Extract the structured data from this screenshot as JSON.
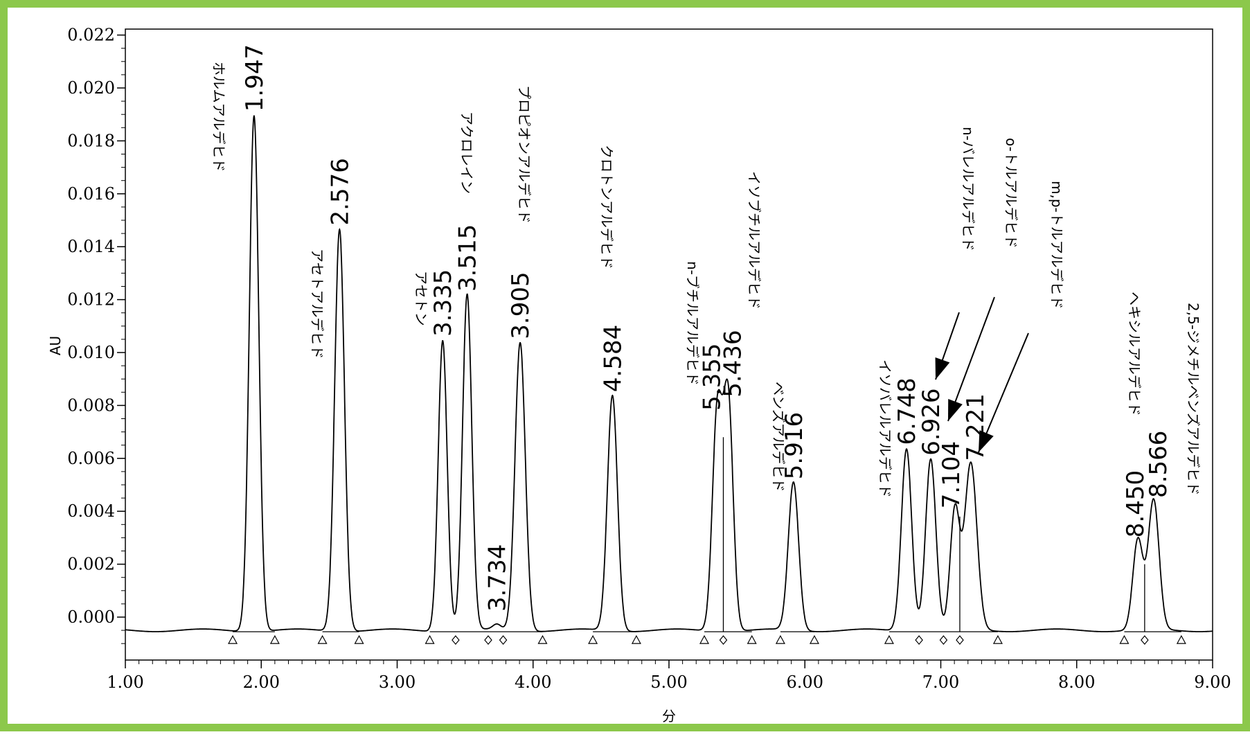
{
  "colors": {
    "frame": "#8cc84b",
    "trace": "#000000",
    "background": "#ffffff"
  },
  "chart_data": {
    "type": "line",
    "title": "",
    "xlabel": "分",
    "ylabel": "AU",
    "xlim": [
      1.0,
      9.0
    ],
    "ylim": [
      -0.002,
      0.022
    ],
    "grid": false,
    "x_ticks": [
      "1.00",
      "2.00",
      "3.00",
      "4.00",
      "5.00",
      "6.00",
      "7.00",
      "8.00",
      "9.00"
    ],
    "y_ticks": [
      "0.000",
      "0.002",
      "0.004",
      "0.006",
      "0.008",
      "0.010",
      "0.012",
      "0.014",
      "0.016",
      "0.018",
      "0.020",
      "0.022"
    ],
    "baseline": -0.0005,
    "peaks": [
      {
        "rt": 1.947,
        "rt_label": "1.947",
        "height": 0.019,
        "width": 0.035
      },
      {
        "rt": 2.576,
        "rt_label": "2.576",
        "height": 0.0147,
        "width": 0.036
      },
      {
        "rt": 3.335,
        "rt_label": "3.335",
        "height": 0.0105,
        "width": 0.033
      },
      {
        "rt": 3.515,
        "rt_label": "3.515",
        "height": 0.0122,
        "width": 0.034
      },
      {
        "rt": 3.734,
        "rt_label": "3.734",
        "height": -0.0003,
        "width": 0.03
      },
      {
        "rt": 3.905,
        "rt_label": "3.905",
        "height": 0.0104,
        "width": 0.038
      },
      {
        "rt": 4.584,
        "rt_label": "4.584",
        "height": 0.0084,
        "width": 0.037
      },
      {
        "rt": 5.355,
        "rt_label": "5.355",
        "height": 0.0077,
        "width": 0.036
      },
      {
        "rt": 5.436,
        "rt_label": "5.436",
        "height": 0.0082,
        "width": 0.036
      },
      {
        "rt": 5.916,
        "rt_label": "5.916",
        "height": 0.0051,
        "width": 0.038
      },
      {
        "rt": 6.748,
        "rt_label": "6.748",
        "height": 0.0064,
        "width": 0.038
      },
      {
        "rt": 6.926,
        "rt_label": "6.926",
        "height": 0.006,
        "width": 0.038
      },
      {
        "rt": 7.104,
        "rt_label": "7.104",
        "height": 0.004,
        "width": 0.035
      },
      {
        "rt": 7.221,
        "rt_label": "7.221",
        "height": 0.0058,
        "width": 0.045
      },
      {
        "rt": 8.45,
        "rt_label": "8.450",
        "height": 0.0029,
        "width": 0.037
      },
      {
        "rt": 8.566,
        "rt_label": "8.566",
        "height": 0.0044,
        "width": 0.04
      }
    ],
    "compounds": [
      "ホルムアルデヒド",
      "アセトアルデヒド",
      "アセトン",
      "アクロレイン",
      "プロピオンアルデヒド",
      "クロトンアルデヒド",
      "n-ブチルアルデヒド",
      "イソブチルアルデヒド",
      "ベンズアルデヒド",
      "イソバレルアルデヒド",
      "n-バレルアルデヒド",
      "o-トルアルデヒド",
      "m,p-トルアルデヒド",
      "ヘキシルアルデヒド",
      "2,5-ジメチルベンズアルデヒド"
    ],
    "integration_marks": [
      {
        "x": 1.79,
        "shape": "triangle"
      },
      {
        "x": 2.1,
        "shape": "triangle"
      },
      {
        "x": 2.45,
        "shape": "triangle"
      },
      {
        "x": 2.72,
        "shape": "triangle"
      },
      {
        "x": 3.24,
        "shape": "triangle"
      },
      {
        "x": 3.43,
        "shape": "diamond"
      },
      {
        "x": 3.67,
        "shape": "diamond"
      },
      {
        "x": 3.78,
        "shape": "diamond"
      },
      {
        "x": 4.07,
        "shape": "triangle"
      },
      {
        "x": 4.44,
        "shape": "triangle"
      },
      {
        "x": 4.76,
        "shape": "triangle"
      },
      {
        "x": 5.26,
        "shape": "triangle"
      },
      {
        "x": 5.4,
        "shape": "diamond"
      },
      {
        "x": 5.61,
        "shape": "triangle"
      },
      {
        "x": 5.82,
        "shape": "triangle"
      },
      {
        "x": 6.07,
        "shape": "triangle"
      },
      {
        "x": 6.62,
        "shape": "triangle"
      },
      {
        "x": 6.84,
        "shape": "diamond"
      },
      {
        "x": 7.02,
        "shape": "diamond"
      },
      {
        "x": 7.14,
        "shape": "diamond"
      },
      {
        "x": 7.42,
        "shape": "triangle"
      },
      {
        "x": 8.35,
        "shape": "triangle"
      },
      {
        "x": 8.5,
        "shape": "diamond"
      },
      {
        "x": 8.77,
        "shape": "triangle"
      }
    ]
  }
}
